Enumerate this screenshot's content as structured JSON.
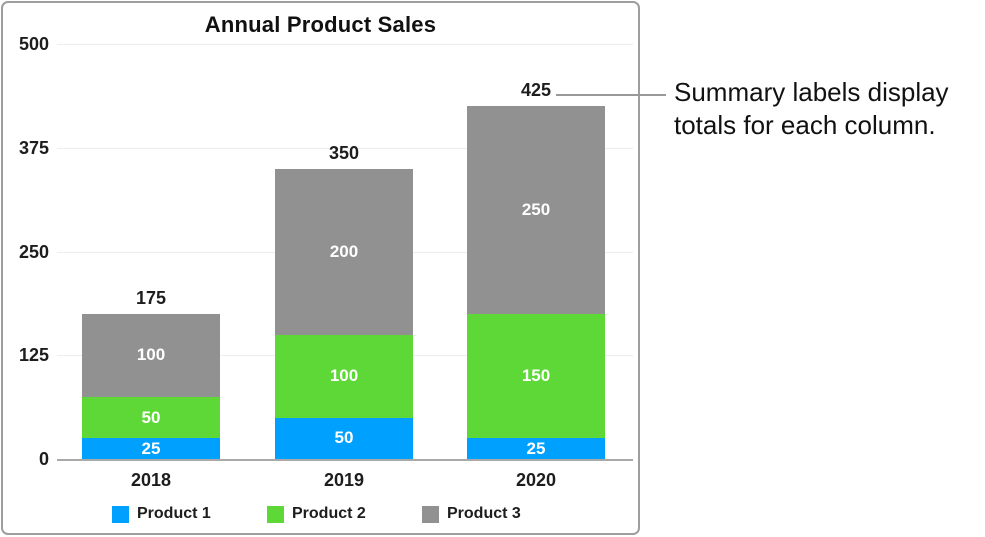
{
  "annotation": {
    "line1": "Summary labels display",
    "line2": "totals for each column."
  },
  "chart_data": {
    "type": "bar",
    "stacked": true,
    "title": "Annual Product Sales",
    "categories": [
      "2018",
      "2019",
      "2020"
    ],
    "series": [
      {
        "name": "Product 1",
        "color": "#00A0FF",
        "values": [
          25,
          50,
          25
        ]
      },
      {
        "name": "Product 2",
        "color": "#5DD836",
        "values": [
          50,
          100,
          150
        ]
      },
      {
        "name": "Product 3",
        "color": "#919191",
        "values": [
          100,
          200,
          250
        ]
      }
    ],
    "totals": [
      175,
      350,
      425
    ],
    "y_ticks": [
      500,
      375,
      250,
      125,
      0
    ],
    "ylim": [
      0,
      500
    ],
    "grid": true,
    "legend_position": "bottom"
  },
  "colors": {
    "panel_border": "#9e9e9e",
    "gridline": "#ededed",
    "axis_line": "#a9a9a9",
    "callout_line": "#999999",
    "segment_text": "#ffffff",
    "chart_text": "#1d1d1d"
  }
}
